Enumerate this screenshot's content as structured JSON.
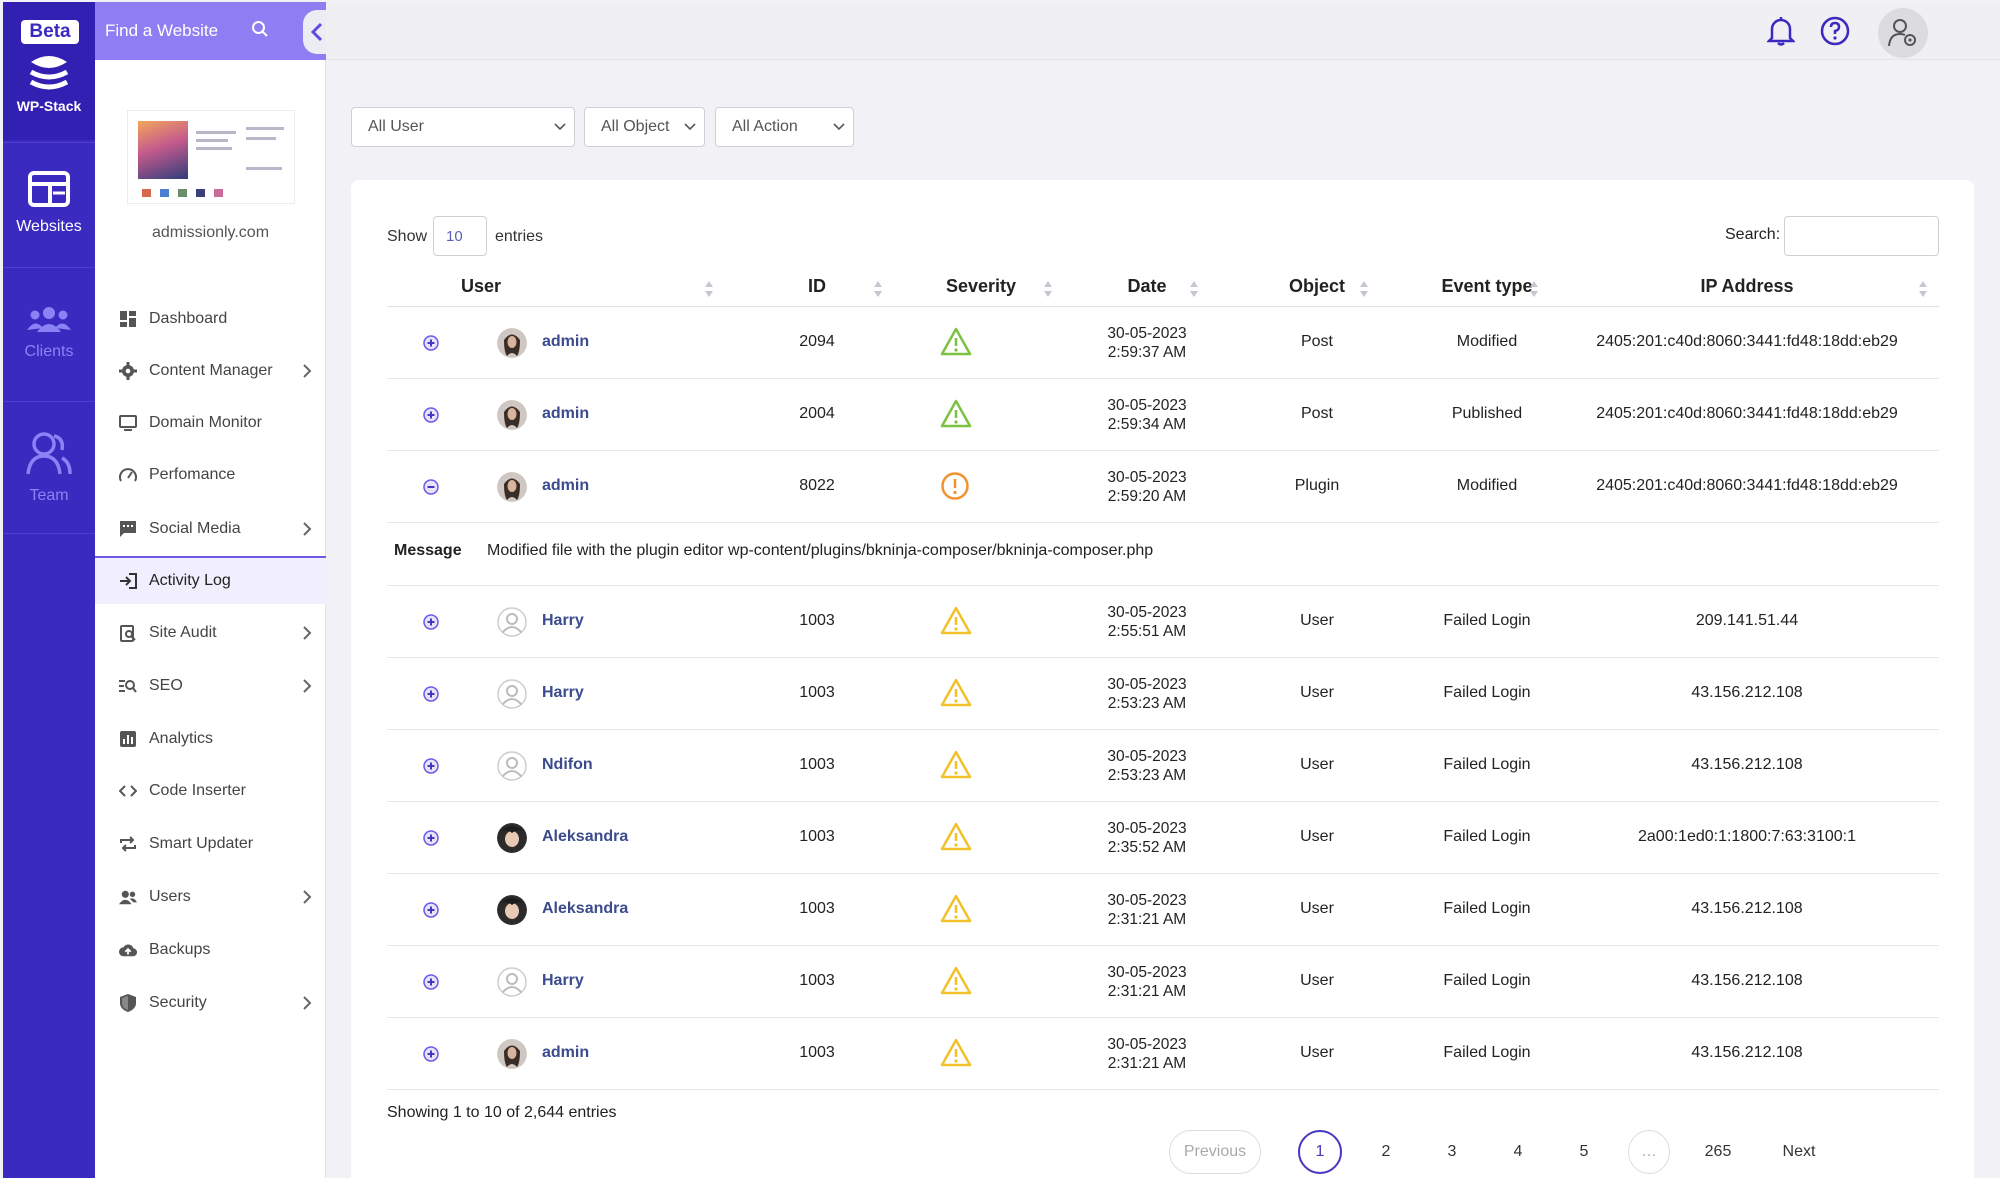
{
  "rail": {
    "badge": "Beta",
    "brand": "WP-Stack",
    "items": [
      {
        "label": "Websites"
      },
      {
        "label": "Clients"
      },
      {
        "label": "Team"
      }
    ]
  },
  "sidebar": {
    "search_placeholder": "Find a Website",
    "site_name": "admissionly.com",
    "items": [
      {
        "label": "Dashboard",
        "icon": "dashboard-icon"
      },
      {
        "label": "Content Manager",
        "icon": "gear-icon"
      },
      {
        "label": "Domain Monitor",
        "icon": "monitor-icon"
      },
      {
        "label": "Perfomance",
        "icon": "gauge-icon"
      },
      {
        "label": "Social Media",
        "icon": "chat-icon"
      },
      {
        "label": "Activity Log",
        "icon": "login-arrow-icon"
      },
      {
        "label": "Site Audit",
        "icon": "audit-icon"
      },
      {
        "label": "SEO",
        "icon": "seo-search-icon"
      },
      {
        "label": "Analytics",
        "icon": "bar-chart-icon"
      },
      {
        "label": "Code Inserter",
        "icon": "code-icon"
      },
      {
        "label": "Smart Updater",
        "icon": "repeat-icon"
      },
      {
        "label": "Users",
        "icon": "users-icon"
      },
      {
        "label": "Backups",
        "icon": "cloud-upload-icon"
      },
      {
        "label": "Security",
        "icon": "shield-icon"
      }
    ]
  },
  "filters": {
    "user": "All User",
    "object": "All Object",
    "action": "All Action"
  },
  "table": {
    "show_label": "Show",
    "entries_label": "entries",
    "page_length": "10",
    "search_label": "Search:",
    "columns": [
      "User",
      "ID",
      "Severity",
      "Date",
      "Object",
      "Event type",
      "IP Address"
    ],
    "rows": [
      {
        "user": "admin",
        "id": "2094",
        "severity": "warning-green",
        "date": "30-05-2023",
        "time": "2:59:37 AM",
        "object": "Post",
        "event": "Modified",
        "ip": "2405:201:c40d:8060:3441:fd48:18dd:eb29"
      },
      {
        "user": "admin",
        "id": "2004",
        "severity": "warning-green",
        "date": "30-05-2023",
        "time": "2:59:34 AM",
        "object": "Post",
        "event": "Published",
        "ip": "2405:201:c40d:8060:3441:fd48:18dd:eb29"
      },
      {
        "user": "admin",
        "id": "8022",
        "severity": "alert-orange",
        "date": "30-05-2023",
        "time": "2:59:20 AM",
        "object": "Plugin",
        "event": "Modified",
        "ip": "2405:201:c40d:8060:3441:fd48:18dd:eb29"
      },
      {
        "user": "Harry",
        "id": "1003",
        "severity": "warning-yellow",
        "date": "30-05-2023",
        "time": "2:55:51 AM",
        "object": "User",
        "event": "Failed Login",
        "ip": "209.141.51.44"
      },
      {
        "user": "Harry",
        "id": "1003",
        "severity": "warning-yellow",
        "date": "30-05-2023",
        "time": "2:53:23 AM",
        "object": "User",
        "event": "Failed Login",
        "ip": "43.156.212.108"
      },
      {
        "user": "Ndifon",
        "id": "1003",
        "severity": "warning-yellow",
        "date": "30-05-2023",
        "time": "2:53:23 AM",
        "object": "User",
        "event": "Failed Login",
        "ip": "43.156.212.108"
      },
      {
        "user": "Aleksandra",
        "id": "1003",
        "severity": "warning-yellow",
        "date": "30-05-2023",
        "time": "2:35:52 AM",
        "object": "User",
        "event": "Failed Login",
        "ip": "2a00:1ed0:1:1800:7:63:3100:1"
      },
      {
        "user": "Aleksandra",
        "id": "1003",
        "severity": "warning-yellow",
        "date": "30-05-2023",
        "time": "2:31:21 AM",
        "object": "User",
        "event": "Failed Login",
        "ip": "43.156.212.108"
      },
      {
        "user": "Harry",
        "id": "1003",
        "severity": "warning-yellow",
        "date": "30-05-2023",
        "time": "2:31:21 AM",
        "object": "User",
        "event": "Failed Login",
        "ip": "43.156.212.108"
      },
      {
        "user": "admin",
        "id": "1003",
        "severity": "warning-yellow",
        "date": "30-05-2023",
        "time": "2:31:21 AM",
        "object": "User",
        "event": "Failed Login",
        "ip": "43.156.212.108"
      }
    ],
    "message_label": "Message",
    "message_text": "Modified file with the plugin editor wp-content/plugins/bkninja-composer/bkninja-composer.php",
    "info": "Showing 1 to 10 of 2,644 entries"
  },
  "pagination": {
    "previous": "Previous",
    "pages": [
      "1",
      "2",
      "3",
      "4",
      "5"
    ],
    "ellipsis": "…",
    "last": "265",
    "next": "Next"
  },
  "colors": {
    "primary": "#3a2abf",
    "accent": "#8e7df3",
    "warning_green": "#7cc242",
    "warning_yellow": "#f3c12b",
    "alert_orange": "#f0922e",
    "user_link": "#3b4b8c"
  }
}
